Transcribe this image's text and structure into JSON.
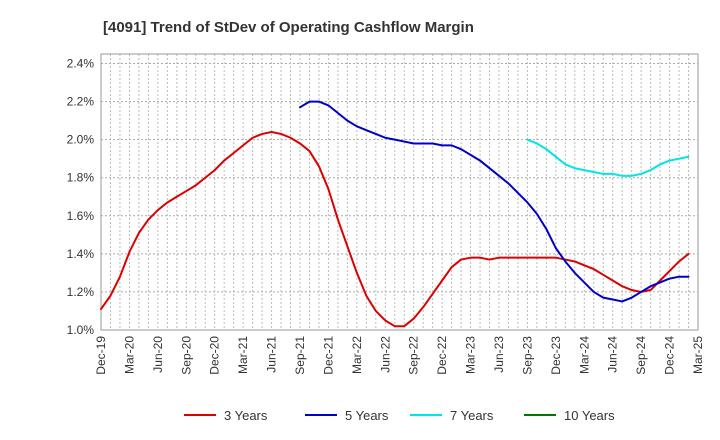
{
  "chart_data": {
    "type": "line",
    "title": "[4091]  Trend of StDev of Operating Cashflow Margin",
    "xlabel": "",
    "ylabel": "",
    "x_ticks": [
      "Dec-19",
      "Mar-20",
      "Jun-20",
      "Sep-20",
      "Dec-20",
      "Mar-21",
      "Jun-21",
      "Sep-21",
      "Dec-21",
      "Mar-22",
      "Jun-22",
      "Sep-22",
      "Dec-22",
      "Mar-23",
      "Jun-23",
      "Sep-23",
      "Dec-23",
      "Mar-24",
      "Jun-24",
      "Sep-24",
      "Dec-24",
      "Mar-25"
    ],
    "y_ticks": [
      "1.0%",
      "1.2%",
      "1.4%",
      "1.6%",
      "1.8%",
      "2.0%",
      "2.2%",
      "2.4%"
    ],
    "y_tick_values": [
      1.0,
      1.2,
      1.4,
      1.6,
      1.8,
      2.0,
      2.2,
      2.4
    ],
    "ylim": [
      1.0,
      2.45
    ],
    "x_range_months": [
      0,
      63
    ],
    "grid": true,
    "legend_position": "bottom",
    "series": [
      {
        "name": "3 Years",
        "color": "#dd0000",
        "points": [
          [
            0,
            1.11
          ],
          [
            1,
            1.18
          ],
          [
            2,
            1.28
          ],
          [
            3,
            1.41
          ],
          [
            4,
            1.51
          ],
          [
            5,
            1.58
          ],
          [
            6,
            1.63
          ],
          [
            7,
            1.67
          ],
          [
            8,
            1.7
          ],
          [
            9,
            1.73
          ],
          [
            10,
            1.76
          ],
          [
            11,
            1.8
          ],
          [
            12,
            1.84
          ],
          [
            13,
            1.89
          ],
          [
            14,
            1.93
          ],
          [
            15,
            1.97
          ],
          [
            16,
            2.01
          ],
          [
            17,
            2.03
          ],
          [
            18,
            2.04
          ],
          [
            19,
            2.03
          ],
          [
            20,
            2.01
          ],
          [
            21,
            1.98
          ],
          [
            22,
            1.94
          ],
          [
            23,
            1.86
          ],
          [
            24,
            1.74
          ],
          [
            25,
            1.58
          ],
          [
            26,
            1.44
          ],
          [
            27,
            1.3
          ],
          [
            28,
            1.18
          ],
          [
            29,
            1.1
          ],
          [
            30,
            1.05
          ],
          [
            31,
            1.02
          ],
          [
            32,
            1.02
          ],
          [
            33,
            1.06
          ],
          [
            34,
            1.12
          ],
          [
            35,
            1.19
          ],
          [
            36,
            1.26
          ],
          [
            37,
            1.33
          ],
          [
            38,
            1.37
          ],
          [
            39,
            1.38
          ],
          [
            40,
            1.38
          ],
          [
            41,
            1.37
          ],
          [
            42,
            1.38
          ],
          [
            43,
            1.38
          ],
          [
            44,
            1.38
          ],
          [
            45,
            1.38
          ],
          [
            46,
            1.38
          ],
          [
            47,
            1.38
          ],
          [
            48,
            1.38
          ],
          [
            49,
            1.37
          ],
          [
            50,
            1.36
          ],
          [
            51,
            1.34
          ],
          [
            52,
            1.32
          ],
          [
            53,
            1.29
          ],
          [
            54,
            1.26
          ],
          [
            55,
            1.23
          ],
          [
            56,
            1.21
          ],
          [
            57,
            1.2
          ],
          [
            58,
            1.21
          ],
          [
            59,
            1.26
          ],
          [
            60,
            1.31
          ],
          [
            61,
            1.36
          ],
          [
            62,
            1.4
          ]
        ]
      },
      {
        "name": "5 Years",
        "color": "#0000cc",
        "points": [
          [
            21,
            2.17
          ],
          [
            22,
            2.2
          ],
          [
            23,
            2.2
          ],
          [
            24,
            2.18
          ],
          [
            25,
            2.14
          ],
          [
            26,
            2.1
          ],
          [
            27,
            2.07
          ],
          [
            28,
            2.05
          ],
          [
            29,
            2.03
          ],
          [
            30,
            2.01
          ],
          [
            31,
            2.0
          ],
          [
            32,
            1.99
          ],
          [
            33,
            1.98
          ],
          [
            34,
            1.98
          ],
          [
            35,
            1.98
          ],
          [
            36,
            1.97
          ],
          [
            37,
            1.97
          ],
          [
            38,
            1.95
          ],
          [
            39,
            1.92
          ],
          [
            40,
            1.89
          ],
          [
            41,
            1.85
          ],
          [
            42,
            1.81
          ],
          [
            43,
            1.77
          ],
          [
            44,
            1.72
          ],
          [
            45,
            1.67
          ],
          [
            46,
            1.61
          ],
          [
            47,
            1.53
          ],
          [
            48,
            1.43
          ],
          [
            49,
            1.36
          ],
          [
            50,
            1.3
          ],
          [
            51,
            1.25
          ],
          [
            52,
            1.2
          ],
          [
            53,
            1.17
          ],
          [
            54,
            1.16
          ],
          [
            55,
            1.15
          ],
          [
            56,
            1.17
          ],
          [
            57,
            1.2
          ],
          [
            58,
            1.23
          ],
          [
            59,
            1.25
          ],
          [
            60,
            1.27
          ],
          [
            61,
            1.28
          ],
          [
            62,
            1.28
          ]
        ]
      },
      {
        "name": "7 Years",
        "color": "#00e5e5",
        "points": [
          [
            45,
            2.0
          ],
          [
            46,
            1.98
          ],
          [
            47,
            1.95
          ],
          [
            48,
            1.91
          ],
          [
            49,
            1.87
          ],
          [
            50,
            1.85
          ],
          [
            51,
            1.84
          ],
          [
            52,
            1.83
          ],
          [
            53,
            1.82
          ],
          [
            54,
            1.82
          ],
          [
            55,
            1.81
          ],
          [
            56,
            1.81
          ],
          [
            57,
            1.82
          ],
          [
            58,
            1.84
          ],
          [
            59,
            1.87
          ],
          [
            60,
            1.89
          ],
          [
            61,
            1.9
          ],
          [
            62,
            1.91
          ]
        ]
      },
      {
        "name": "10 Years",
        "color": "#007700",
        "points": []
      }
    ]
  }
}
